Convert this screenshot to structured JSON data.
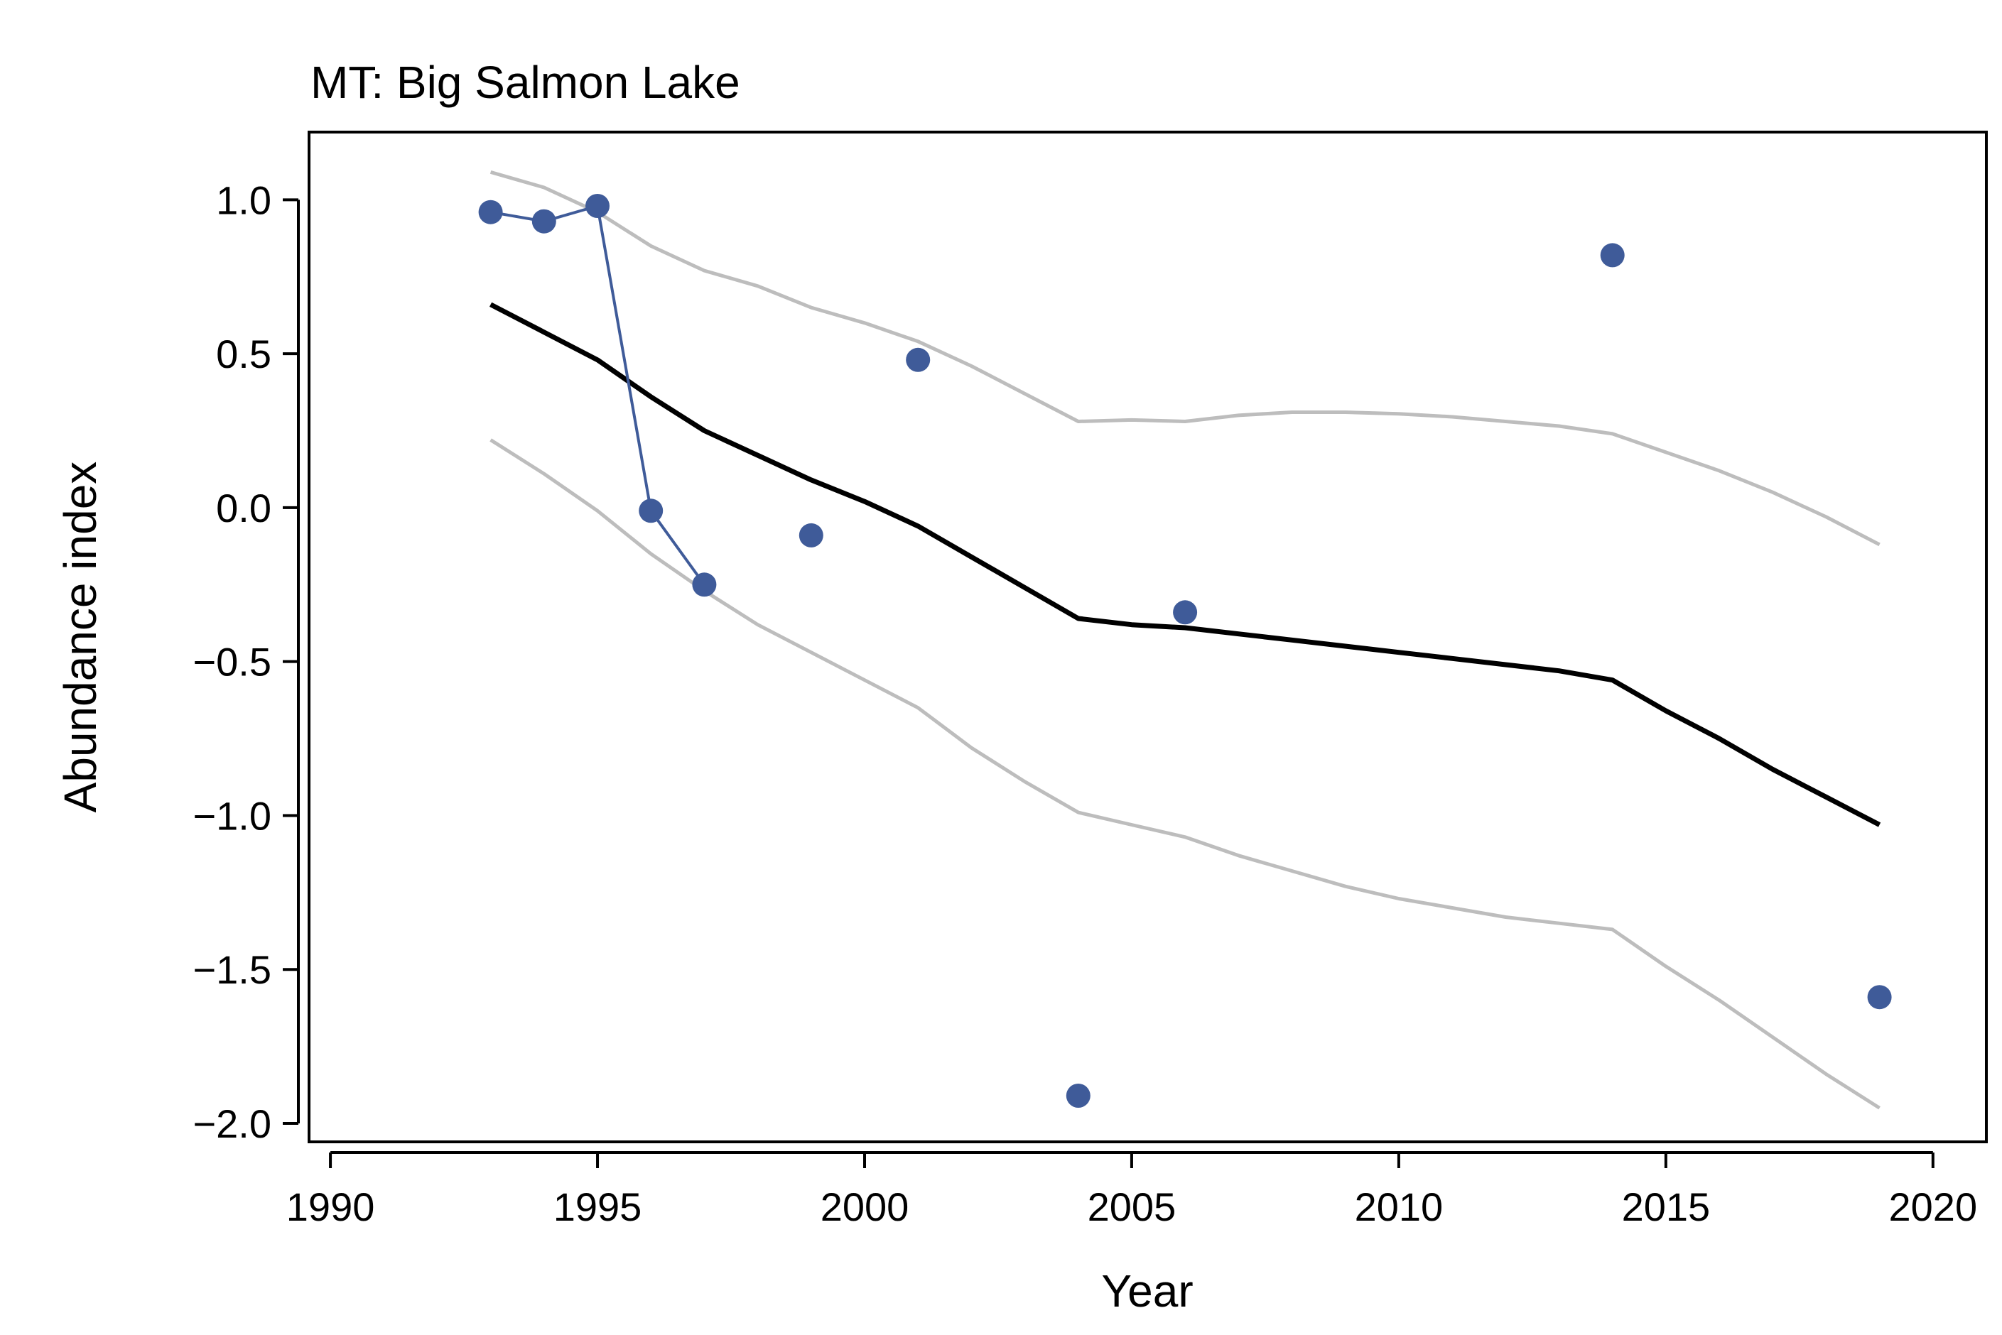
{
  "chart_data": {
    "type": "line",
    "title": "MT: Big Salmon Lake",
    "xlabel": "Year",
    "ylabel": "Abundance index",
    "xlim": [
      1989.6,
      2021.0
    ],
    "ylim": [
      -2.06,
      1.22
    ],
    "x_ticks": [
      1990,
      1995,
      2000,
      2005,
      2010,
      2015,
      2020
    ],
    "y_ticks": [
      1.0,
      0.5,
      0.0,
      -0.5,
      -1.0,
      -1.5,
      -2.0
    ],
    "x_tick_labels": [
      "1990",
      "1995",
      "2000",
      "2005",
      "2010",
      "2015",
      "2020"
    ],
    "y_tick_labels": [
      "1.0",
      "0.5",
      "0.0",
      "−0.5",
      "−1.0",
      "−1.5",
      "−2.0"
    ],
    "grid": false,
    "legend": "none",
    "colors": {
      "observed": "#3f5b99",
      "trend": "#000000",
      "interval": "#bdbdbd"
    },
    "series": [
      {
        "role": "observed-points",
        "x": [
          1993,
          1994,
          1995,
          1996,
          1997,
          1999,
          2001,
          2004,
          2006,
          2014,
          2019
        ],
        "y": [
          0.96,
          0.93,
          0.98,
          -0.01,
          -0.25,
          -0.09,
          0.48,
          -1.91,
          -0.34,
          0.82,
          -1.59
        ]
      },
      {
        "role": "observed-consecutive-line",
        "x": [
          1993,
          1994,
          1995,
          1996,
          1997
        ],
        "y": [
          0.96,
          0.93,
          0.98,
          -0.01,
          -0.25
        ]
      },
      {
        "role": "trend",
        "x": [
          1993,
          1994,
          1995,
          1996,
          1997,
          1998,
          1999,
          2000,
          2001,
          2002,
          2003,
          2004,
          2005,
          2006,
          2007,
          2008,
          2009,
          2010,
          2011,
          2012,
          2013,
          2014,
          2015,
          2016,
          2017,
          2018,
          2019
        ],
        "y": [
          0.66,
          0.57,
          0.48,
          0.36,
          0.25,
          0.17,
          0.09,
          0.02,
          -0.06,
          -0.16,
          -0.26,
          -0.36,
          -0.38,
          -0.39,
          -0.41,
          -0.43,
          -0.45,
          -0.47,
          -0.49,
          -0.51,
          -0.53,
          -0.56,
          -0.66,
          -0.75,
          -0.85,
          -0.94,
          -1.03
        ]
      },
      {
        "role": "upper-interval",
        "x": [
          1993,
          1994,
          1995,
          1996,
          1997,
          1998,
          1999,
          2000,
          2001,
          2002,
          2003,
          2004,
          2005,
          2006,
          2007,
          2008,
          2009,
          2010,
          2011,
          2012,
          2013,
          2014,
          2015,
          2016,
          2017,
          2018,
          2019
        ],
        "y": [
          1.09,
          1.04,
          0.96,
          0.85,
          0.77,
          0.72,
          0.65,
          0.6,
          0.54,
          0.46,
          0.37,
          0.28,
          0.285,
          0.28,
          0.3,
          0.31,
          0.31,
          0.305,
          0.295,
          0.28,
          0.265,
          0.24,
          0.18,
          0.12,
          0.05,
          -0.03,
          -0.12
        ]
      },
      {
        "role": "lower-interval",
        "x": [
          1993,
          1994,
          1995,
          1996,
          1997,
          1998,
          1999,
          2000,
          2001,
          2002,
          2003,
          2004,
          2005,
          2006,
          2007,
          2008,
          2009,
          2010,
          2011,
          2012,
          2013,
          2014,
          2015,
          2016,
          2017,
          2018,
          2019
        ],
        "y": [
          0.22,
          0.11,
          -0.01,
          -0.15,
          -0.27,
          -0.38,
          -0.47,
          -0.56,
          -0.65,
          -0.78,
          -0.89,
          -0.99,
          -1.03,
          -1.07,
          -1.13,
          -1.18,
          -1.23,
          -1.27,
          -1.3,
          -1.33,
          -1.35,
          -1.37,
          -1.49,
          -1.6,
          -1.72,
          -1.84,
          -1.95
        ]
      }
    ]
  }
}
